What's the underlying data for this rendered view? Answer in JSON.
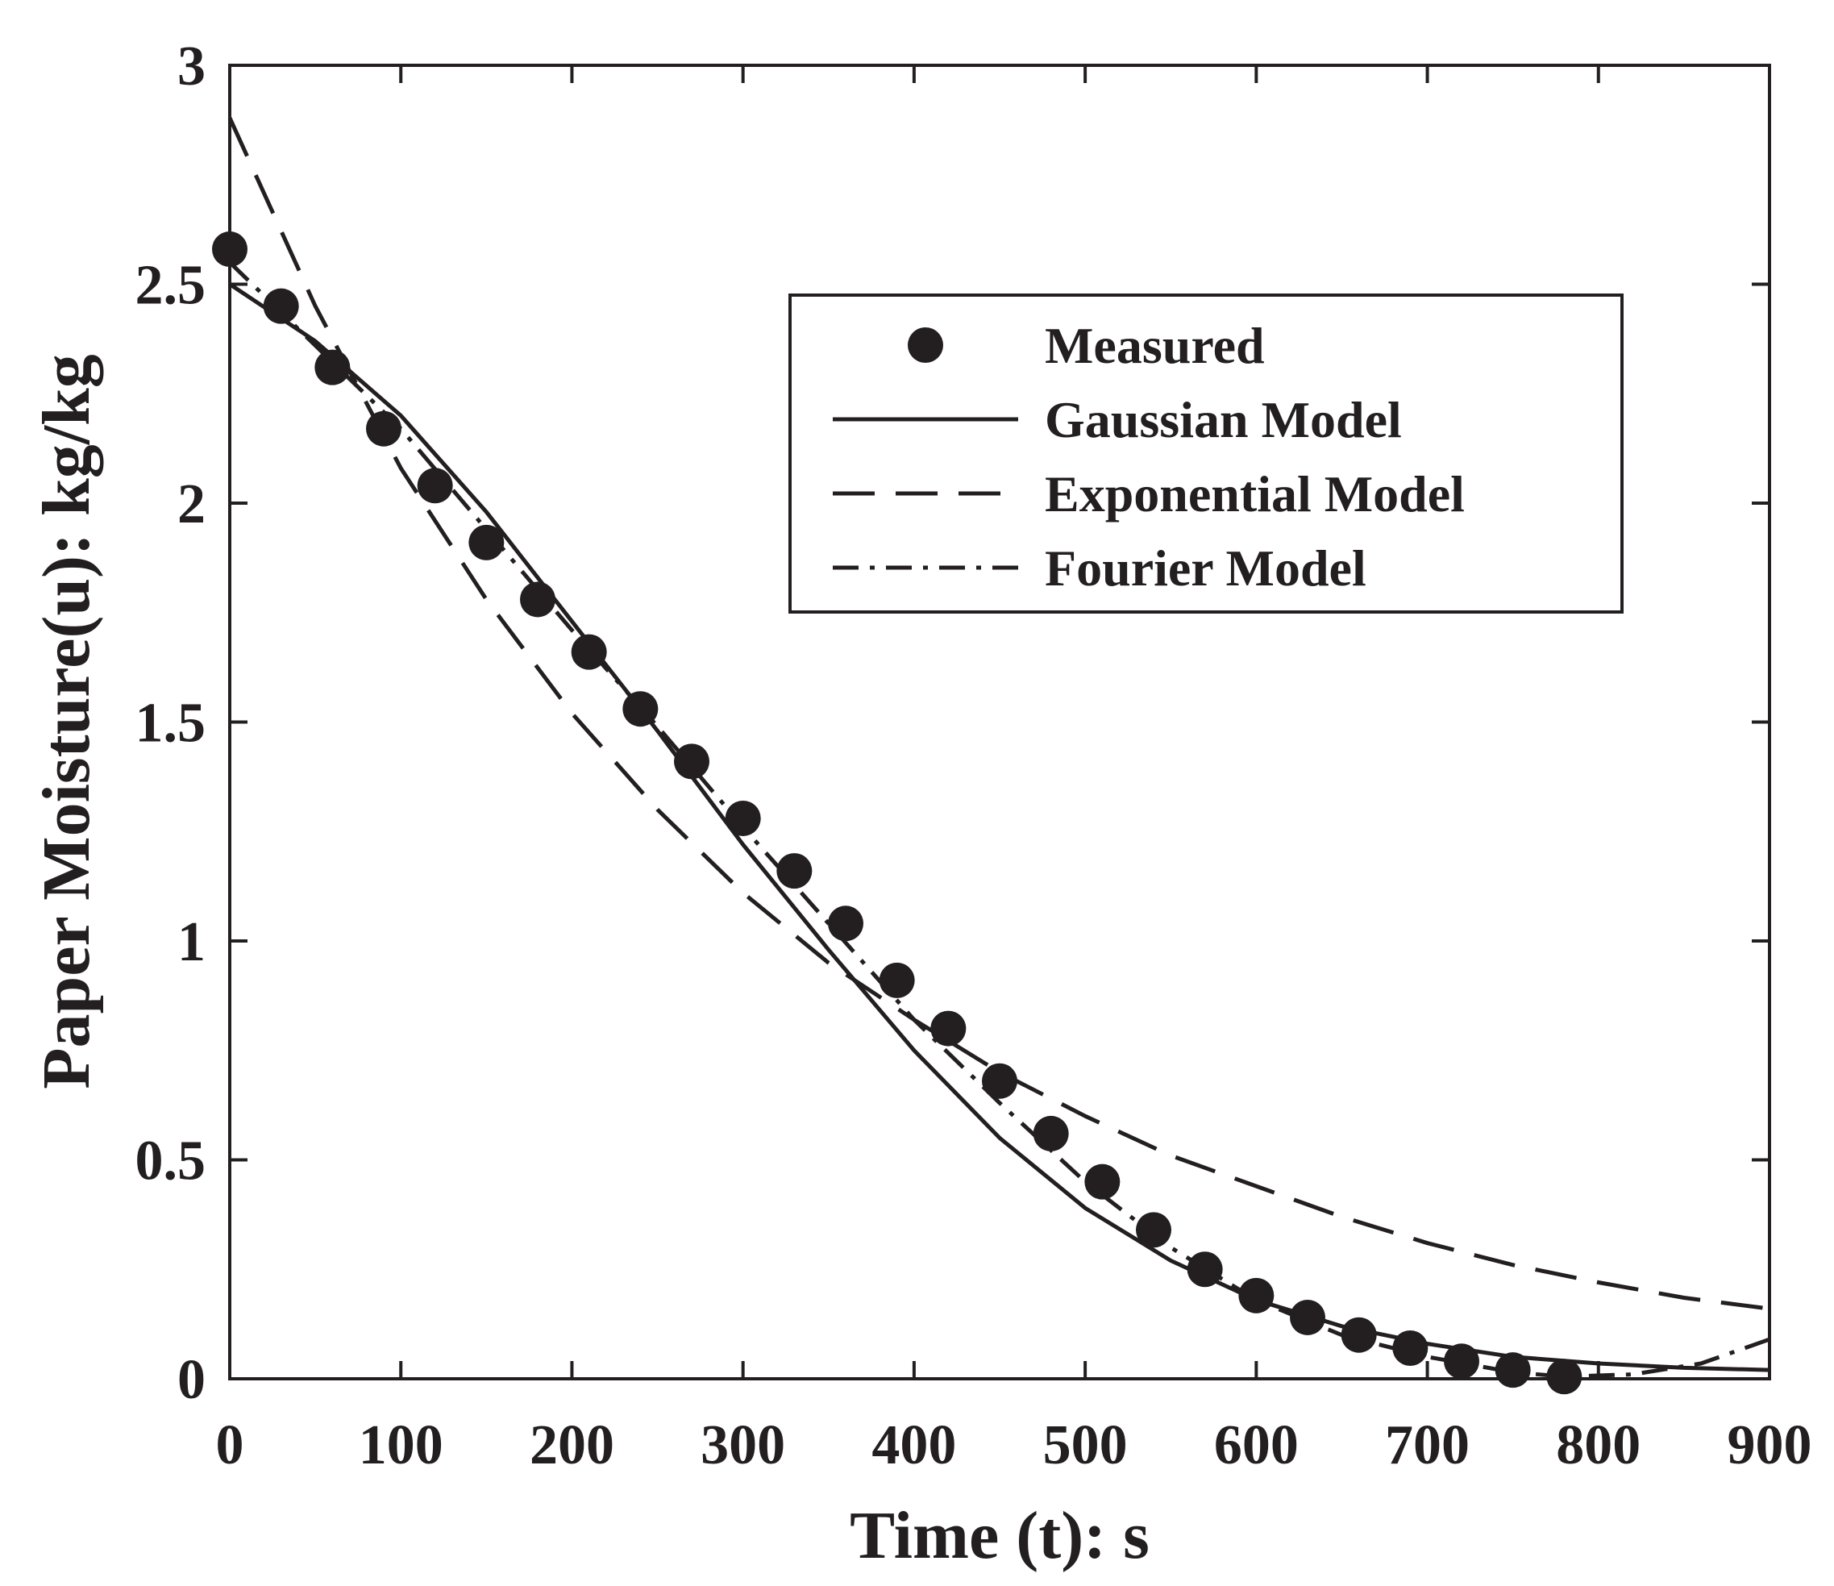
{
  "chart_data": {
    "type": "line",
    "title": "",
    "xlabel": "Time (t): s",
    "ylabel": "Paper Moisture(u): kg/kg",
    "xlim": [
      0,
      900
    ],
    "ylim": [
      0,
      3
    ],
    "xticks": [
      0,
      100,
      200,
      300,
      400,
      500,
      600,
      700,
      800,
      900
    ],
    "yticks": [
      0,
      0.5,
      1,
      1.5,
      2,
      2.5,
      3
    ],
    "xtick_labels": [
      "0",
      "100",
      "200",
      "300",
      "400",
      "500",
      "600",
      "700",
      "800",
      "900"
    ],
    "ytick_labels": [
      "0",
      "0.5",
      "1",
      "1.5",
      "2",
      "2.5",
      "3"
    ],
    "grid": false,
    "legend_position": "top-right",
    "series": [
      {
        "name": "Measured",
        "style": "marker",
        "x": [
          0,
          30,
          60,
          90,
          120,
          150,
          180,
          210,
          240,
          270,
          300,
          330,
          360,
          390,
          420,
          450,
          480,
          510,
          540,
          570,
          600,
          630,
          660,
          690,
          720,
          750,
          780
        ],
        "y": [
          2.58,
          2.45,
          2.31,
          2.17,
          2.04,
          1.91,
          1.78,
          1.66,
          1.53,
          1.41,
          1.28,
          1.16,
          1.04,
          0.91,
          0.8,
          0.68,
          0.56,
          0.45,
          0.34,
          0.25,
          0.19,
          0.14,
          0.1,
          0.07,
          0.04,
          0.02,
          0.005
        ]
      },
      {
        "name": "Gaussian Model",
        "style": "solid",
        "x": [
          0,
          50,
          100,
          150,
          200,
          250,
          300,
          350,
          400,
          450,
          500,
          550,
          600,
          650,
          700,
          750,
          800,
          850,
          900
        ],
        "y": [
          2.5,
          2.37,
          2.2,
          1.98,
          1.73,
          1.48,
          1.22,
          0.98,
          0.75,
          0.55,
          0.39,
          0.27,
          0.18,
          0.12,
          0.08,
          0.05,
          0.035,
          0.025,
          0.02
        ]
      },
      {
        "name": "Exponential Model",
        "style": "dashed",
        "x": [
          0,
          50,
          100,
          150,
          200,
          250,
          300,
          350,
          400,
          450,
          500,
          550,
          600,
          650,
          700,
          750,
          800,
          850,
          900
        ],
        "y": [
          2.88,
          2.45,
          2.08,
          1.78,
          1.52,
          1.3,
          1.11,
          0.95,
          0.82,
          0.7,
          0.6,
          0.51,
          0.44,
          0.37,
          0.31,
          0.26,
          0.22,
          0.185,
          0.16
        ]
      },
      {
        "name": "Fourier Model",
        "style": "dashdot",
        "x": [
          0,
          50,
          100,
          150,
          200,
          250,
          300,
          350,
          400,
          450,
          500,
          550,
          600,
          650,
          700,
          750,
          780,
          820,
          860,
          900
        ],
        "y": [
          2.55,
          2.36,
          2.17,
          1.94,
          1.71,
          1.49,
          1.26,
          1.04,
          0.82,
          0.63,
          0.45,
          0.3,
          0.18,
          0.1,
          0.05,
          0.015,
          0.005,
          0.01,
          0.035,
          0.09
        ]
      }
    ]
  }
}
